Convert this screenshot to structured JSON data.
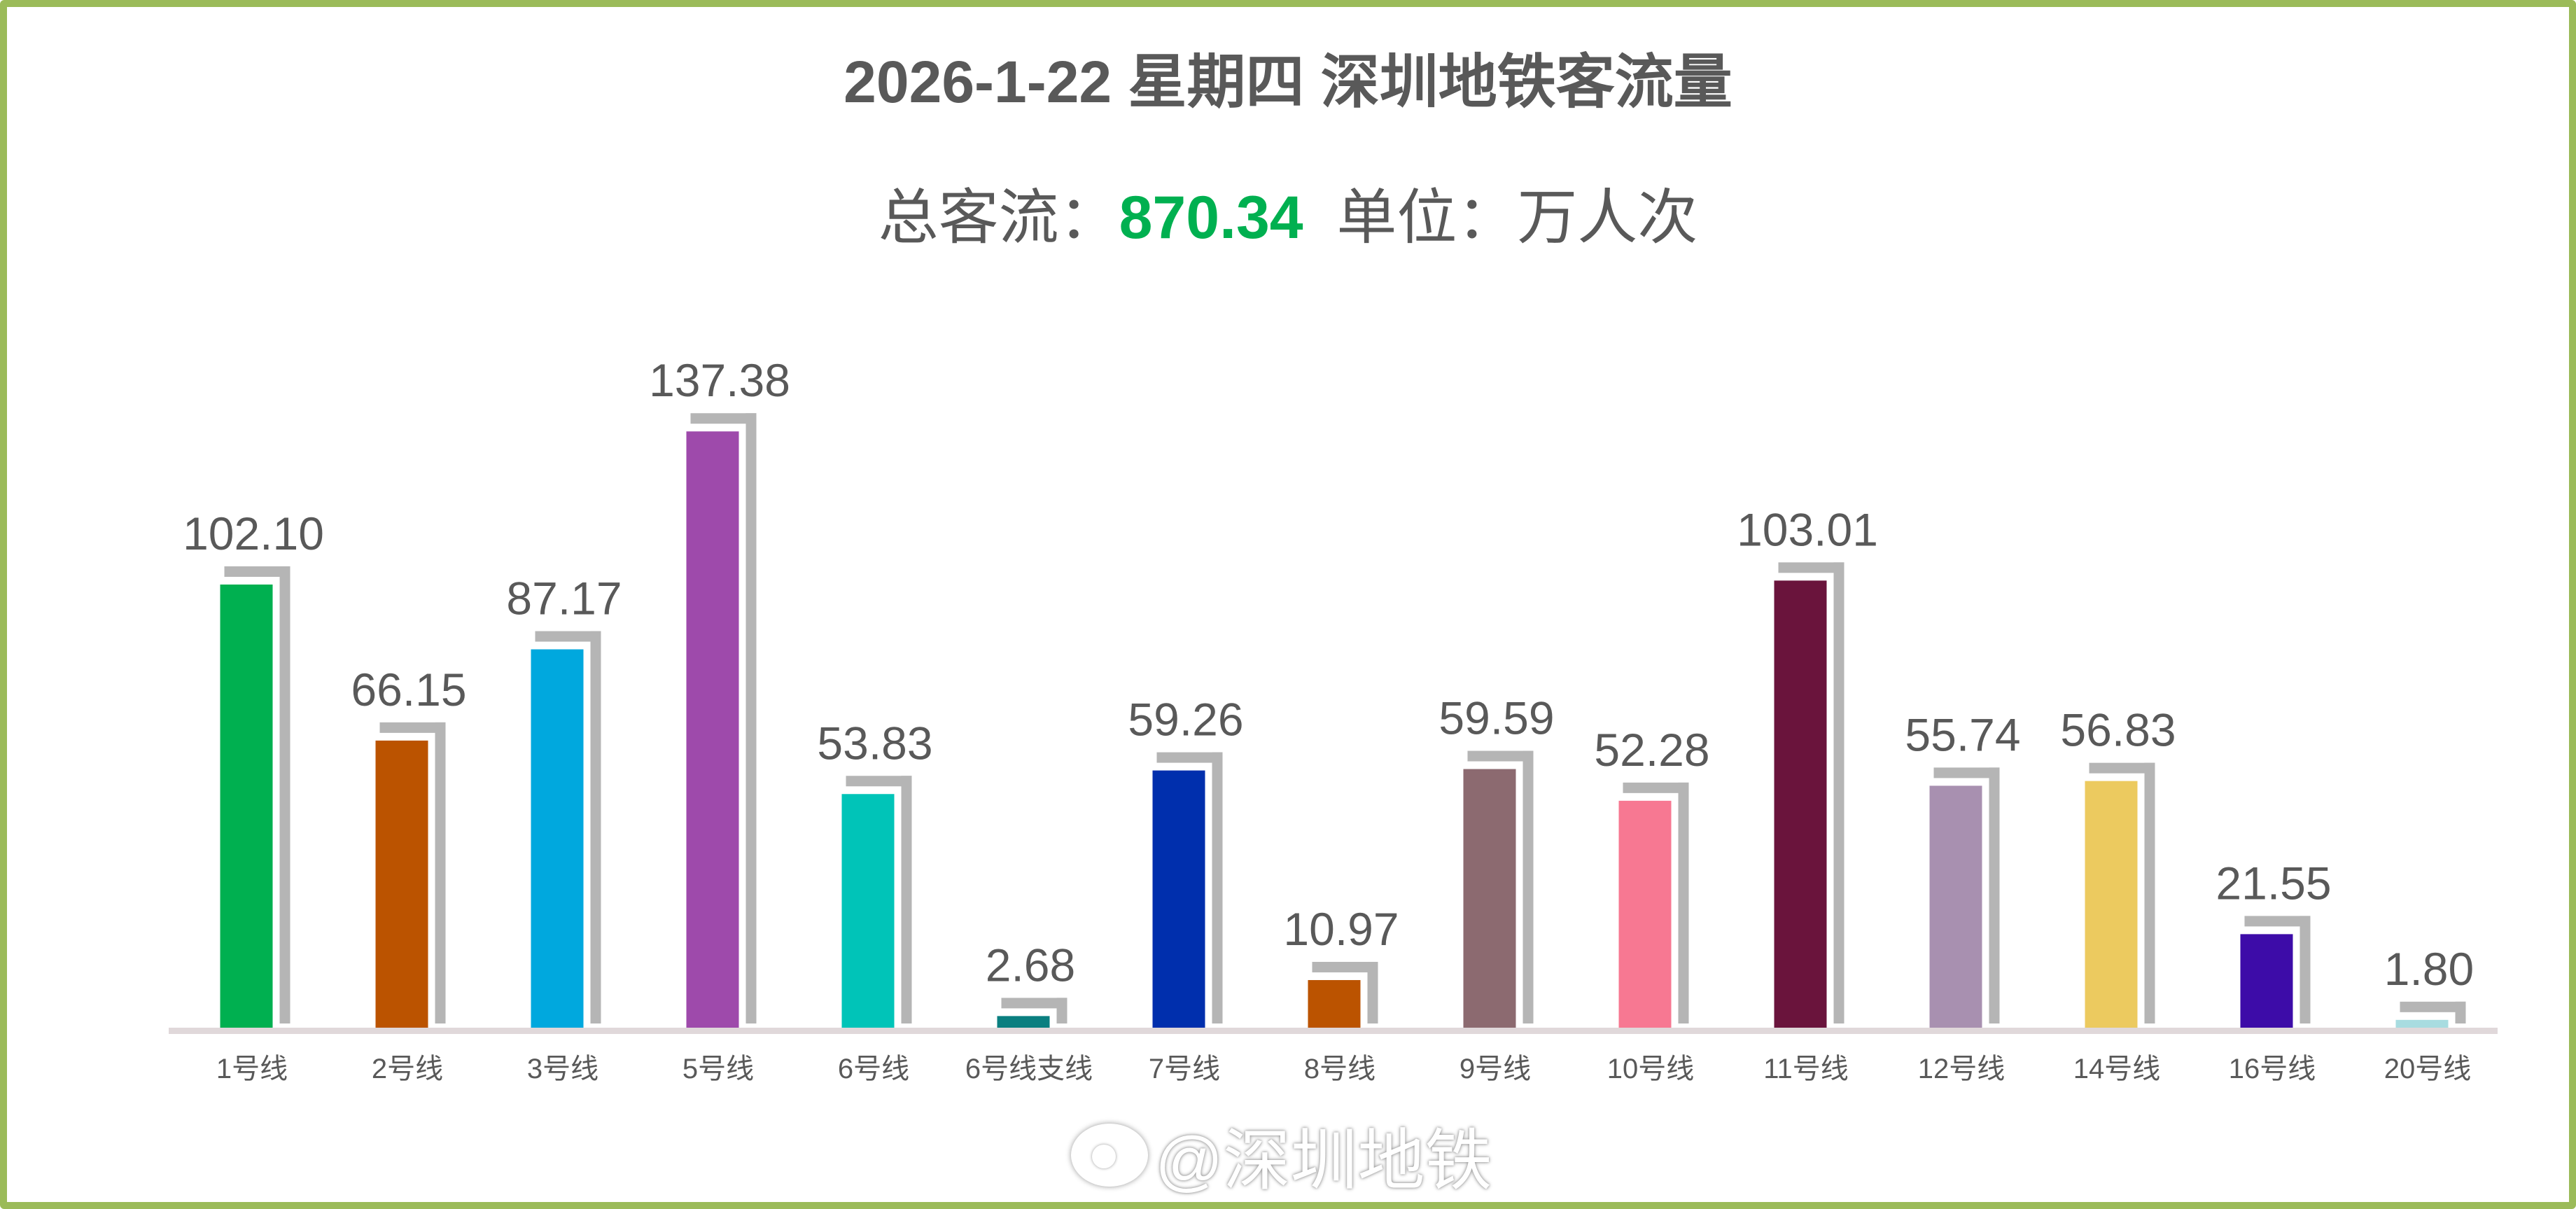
{
  "chart_data": {
    "type": "bar",
    "title": "2026-1-22 星期四  深圳地铁客流量",
    "subtitle": {
      "total_label": "总客流：",
      "total_value": "870.34",
      "unit_label": "单位：万人次"
    },
    "categories": [
      "1号线",
      "2号线",
      "3号线",
      "5号线",
      "6号线",
      "6号线支线",
      "7号线",
      "8号线",
      "9号线",
      "10号线",
      "11号线",
      "12号线",
      "14号线",
      "16号线",
      "20号线"
    ],
    "values": [
      102.1,
      66.15,
      87.17,
      137.38,
      53.83,
      2.68,
      59.26,
      10.97,
      59.59,
      52.28,
      103.01,
      55.74,
      56.83,
      21.55,
      1.8
    ],
    "labels": [
      "102.10",
      "66.15",
      "87.17",
      "137.38",
      "53.83",
      "2.68",
      "59.26",
      "10.97",
      "59.59",
      "52.28",
      "103.01",
      "55.74",
      "56.83",
      "21.55",
      "1.80"
    ],
    "colors": [
      "#00b050",
      "#bb5300",
      "#00a8de",
      "#9e4aab",
      "#00c4b8",
      "#0a7f80",
      "#002fad",
      "#bb5300",
      "#8c6a70",
      "#f77892",
      "#6a143c",
      "#a890b0",
      "#ecca5f",
      "#3d0ca8",
      "#a8dce0"
    ],
    "shadow_color": "#b5b5b5",
    "axis_color": "#e0d8da",
    "ylim": [
      0,
      140
    ],
    "grid": false,
    "legend": "none",
    "xlabel": "",
    "ylabel": ""
  },
  "watermark": {
    "text": "@深圳地铁",
    "icon": "weibo-logo-icon"
  }
}
